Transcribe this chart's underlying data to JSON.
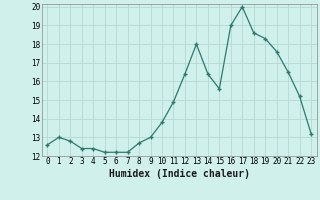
{
  "x": [
    0,
    1,
    2,
    3,
    4,
    5,
    6,
    7,
    8,
    9,
    10,
    11,
    12,
    13,
    14,
    15,
    16,
    17,
    18,
    19,
    20,
    21,
    22,
    23
  ],
  "y": [
    12.6,
    13.0,
    12.8,
    12.4,
    12.4,
    12.2,
    12.2,
    12.2,
    12.7,
    13.0,
    13.8,
    14.9,
    16.4,
    18.0,
    16.4,
    15.6,
    19.0,
    20.0,
    18.6,
    18.3,
    17.6,
    16.5,
    15.2,
    13.2
  ],
  "xlabel": "Humidex (Indice chaleur)",
  "bg_color": "#cff0eb",
  "line_color": "#2d7a6e",
  "marker_color": "#2d7a6e",
  "grid_color": "#b8dbd6",
  "ylim": [
    12,
    20
  ],
  "xlim": [
    -0.5,
    23.5
  ],
  "yticks": [
    12,
    13,
    14,
    15,
    16,
    17,
    18,
    19,
    20
  ],
  "xticks": [
    0,
    1,
    2,
    3,
    4,
    5,
    6,
    7,
    8,
    9,
    10,
    11,
    12,
    13,
    14,
    15,
    16,
    17,
    18,
    19,
    20,
    21,
    22,
    23
  ],
  "tick_fontsize": 5.5,
  "xlabel_fontsize": 7
}
